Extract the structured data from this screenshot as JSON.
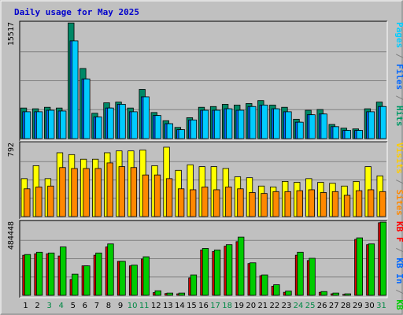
{
  "chart_data": {
    "type": "bar",
    "title": "Daily usage for May 2025",
    "days": [
      "1",
      "2",
      "3",
      "4",
      "5",
      "6",
      "7",
      "8",
      "9",
      "10",
      "11",
      "12",
      "13",
      "14",
      "15",
      "16",
      "17",
      "18",
      "19",
      "20",
      "21",
      "22",
      "23",
      "24",
      "25",
      "26",
      "27",
      "28",
      "29",
      "30",
      "31"
    ],
    "weekend_days": [
      "3",
      "4",
      "10",
      "11",
      "17",
      "18",
      "24",
      "25",
      "31"
    ],
    "panels": [
      {
        "scale_label": "15517",
        "ymax": 15517,
        "side_label": [
          {
            "text": "Pages",
            "color": "#00ccff"
          },
          {
            "text": " / ",
            "color": "#808080"
          },
          {
            "text": "Files",
            "color": "#0066ff"
          },
          {
            "text": " / ",
            "color": "#808080"
          },
          {
            "text": "Hits",
            "color": "#009966"
          }
        ],
        "series": [
          {
            "key": "hits",
            "color": "#008866",
            "values": [
              4100,
              4000,
              4200,
              4100,
              15500,
              9400,
              3400,
              4800,
              4900,
              4100,
              6600,
              3500,
              2400,
              1500,
              2800,
              4200,
              4300,
              4600,
              4500,
              4700,
              5100,
              4500,
              4200,
              2600,
              3800,
              3900,
              1900,
              1400,
              1300,
              4000,
              4900
            ]
          },
          {
            "key": "files",
            "color": "#0066ff",
            "values": [
              3600,
              3600,
              3800,
              3700,
              13100,
              8000,
              2900,
              4100,
              4600,
              3600,
              5600,
              3100,
              2000,
              1200,
              2500,
              3800,
              3800,
              4000,
              3800,
              4300,
              4500,
              4000,
              3600,
              2200,
              3200,
              3300,
              1600,
              1100,
              1100,
              3600,
              4300
            ]
          },
          {
            "key": "pages",
            "color": "#00ccff",
            "values": [
              3600,
              3600,
              3800,
              3700,
              13100,
              8000,
              2900,
              4100,
              4600,
              3600,
              5600,
              3100,
              2000,
              1200,
              2500,
              3800,
              3800,
              4000,
              3800,
              4300,
              4500,
              4000,
              3600,
              2200,
              3200,
              3300,
              1600,
              1100,
              1100,
              3600,
              4300
            ]
          }
        ]
      },
      {
        "scale_label": "792",
        "ymax": 792,
        "side_label": [
          {
            "text": "Visits",
            "color": "#ffcc00"
          },
          {
            "text": " / ",
            "color": "#808080"
          },
          {
            "text": "Sites",
            "color": "#ff8800"
          }
        ],
        "series": [
          {
            "key": "visits",
            "color": "#ffff00",
            "values": [
              410,
              550,
              410,
              690,
              670,
              620,
              620,
              690,
              710,
              710,
              720,
              550,
              750,
              500,
              560,
              540,
              540,
              520,
              430,
              420,
              330,
              320,
              380,
              370,
              410,
              370,
              360,
              330,
              380,
              540,
              440
            ]
          },
          {
            "key": "sites",
            "color": "#ff8800",
            "values": [
              300,
              320,
              330,
              530,
              520,
              520,
              520,
              580,
              540,
              530,
              450,
              450,
              410,
              300,
              290,
              320,
              290,
              320,
              300,
              260,
              250,
              270,
              270,
              280,
              290,
              260,
              270,
              230,
              280,
              290,
              270
            ]
          }
        ]
      },
      {
        "scale_label": "484448",
        "ymax": 484448,
        "side_label": [
          {
            "text": "KB F",
            "color": "#ff0000"
          },
          {
            "text": " / ",
            "color": "#808080"
          },
          {
            "text": "KB In",
            "color": "#0066ff"
          },
          {
            "text": " / ",
            "color": "#808080"
          },
          {
            "text": "KB Out",
            "color": "#00cc00"
          }
        ],
        "series": [
          {
            "key": "kbf",
            "color": "#ff0000",
            "values": [
              0,
              0,
              0,
              0,
              0,
              0,
              0,
              0,
              0,
              0,
              0,
              0,
              0,
              0,
              0,
              0,
              0,
              0,
              0,
              0,
              0,
              0,
              0,
              0,
              0,
              0,
              0,
              0,
              0,
              0,
              0
            ]
          },
          {
            "key": "kbin",
            "color": "#dd0000",
            "values": [
              265000,
              275000,
              275000,
              260000,
              105000,
              195000,
              265000,
              320000,
              225000,
              195000,
              240000,
              18000,
              12000,
              10000,
              115000,
              300000,
              290000,
              325000,
              355000,
              210000,
              130000,
              60000,
              20000,
              265000,
              230000,
              20000,
              10000,
              6000,
              370000,
              335000,
              480000
            ]
          },
          {
            "key": "kbout",
            "color": "#00cc00",
            "values": [
              270000,
              285000,
              280000,
              320000,
              140000,
              195000,
              280000,
              340000,
              225000,
              200000,
              255000,
              30000,
              15000,
              15000,
              135000,
              310000,
              300000,
              335000,
              385000,
              215000,
              135000,
              70000,
              28000,
              285000,
              245000,
              25000,
              15000,
              10000,
              380000,
              340000,
              484000
            ]
          }
        ]
      }
    ]
  }
}
